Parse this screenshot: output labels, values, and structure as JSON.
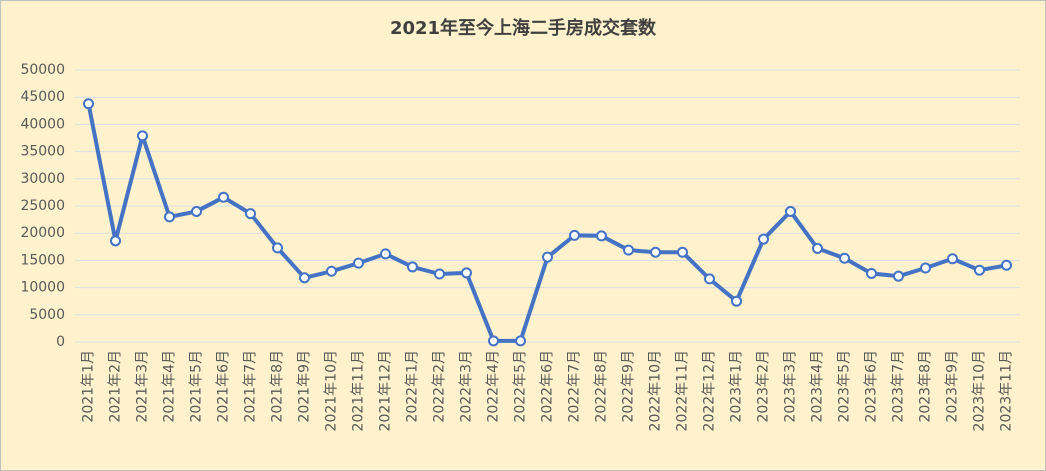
{
  "chart_data": {
    "type": "line",
    "title": "2021年至今上海二手房成交套数",
    "categories": [
      "2021年1月",
      "2021年2月",
      "2021年3月",
      "2021年4月",
      "2021年5月",
      "2021年6月",
      "2021年7月",
      "2021年8月",
      "2021年9月",
      "2021年10月",
      "2021年11月",
      "2021年12月",
      "2022年1月",
      "2022年2月",
      "2022年3月",
      "2022年4月",
      "2022年5月",
      "2022年6月",
      "2022年7月",
      "2022年8月",
      "2022年9月",
      "2022年10月",
      "2022年11月",
      "2022年12月",
      "2023年1月",
      "2023年2月",
      "2023年3月",
      "2023年4月",
      "2023年5月",
      "2023年6月",
      "2023年7月",
      "2023年8月",
      "2023年9月",
      "2023年10月",
      "2023年11月"
    ],
    "values": [
      43800,
      18600,
      37900,
      23000,
      24000,
      26600,
      23600,
      17300,
      11800,
      13000,
      14500,
      16200,
      13800,
      12500,
      12700,
      200,
      200,
      15600,
      19600,
      19500,
      16900,
      16500,
      16500,
      11600,
      7500,
      18900,
      24000,
      17200,
      15400,
      12600,
      12100,
      13600,
      15300,
      13200,
      14100
    ],
    "color": "#4472c4",
    "ylim": [
      0,
      50000
    ],
    "yticks": [
      0,
      5000,
      10000,
      15000,
      20000,
      25000,
      30000,
      35000,
      40000,
      45000,
      50000
    ],
    "grid": true
  }
}
